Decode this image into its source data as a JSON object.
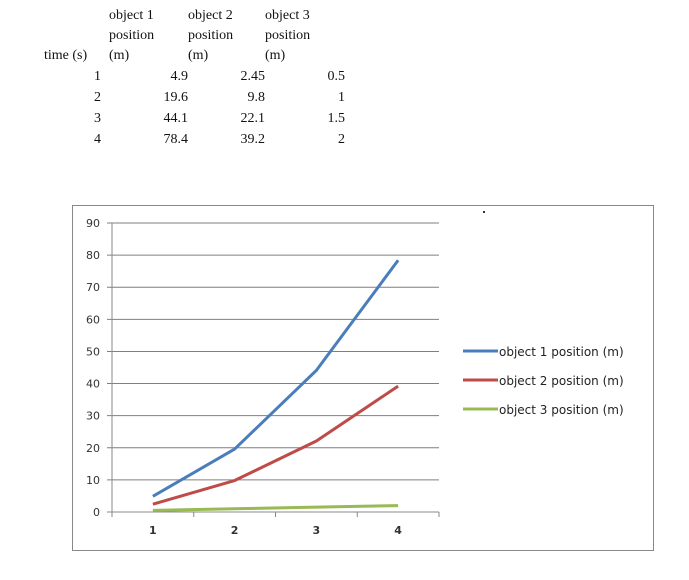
{
  "table": {
    "headers": [
      "time (s)",
      "object 1\nposition\n(m)",
      "object 2\nposition\n(m)",
      "object 3\nposition\n(m)"
    ],
    "header_lines": [
      [
        "time (s)"
      ],
      [
        "object 1",
        "position",
        "(m)"
      ],
      [
        "object 2",
        "position",
        "(m)"
      ],
      [
        "object 3",
        "position",
        "(m)"
      ]
    ],
    "rows": [
      [
        "1",
        "4.9",
        "2.45",
        "0.5"
      ],
      [
        "2",
        "19.6",
        "9.8",
        "1"
      ],
      [
        "3",
        "44.1",
        "22.1",
        "1.5"
      ],
      [
        "4",
        "78.4",
        "39.2",
        "2"
      ]
    ]
  },
  "chart_data": {
    "type": "line",
    "title": "",
    "xlabel": "",
    "ylabel": "",
    "categories": [
      "1",
      "2",
      "3",
      "4"
    ],
    "ylim": [
      0,
      90
    ],
    "yticks": [
      0,
      10,
      20,
      30,
      40,
      50,
      60,
      70,
      80,
      90
    ],
    "grid": true,
    "legend": "right",
    "series": [
      {
        "name": "object 1 position (m)",
        "values": [
          4.9,
          19.6,
          44.1,
          78.4
        ],
        "color": "#4a7ebb"
      },
      {
        "name": "object 2 position (m)",
        "values": [
          2.45,
          9.8,
          22.1,
          39.2
        ],
        "color": "#be4b48"
      },
      {
        "name": "object 3 position (m)",
        "values": [
          0.5,
          1,
          1.5,
          2
        ],
        "color": "#98b954"
      }
    ]
  }
}
